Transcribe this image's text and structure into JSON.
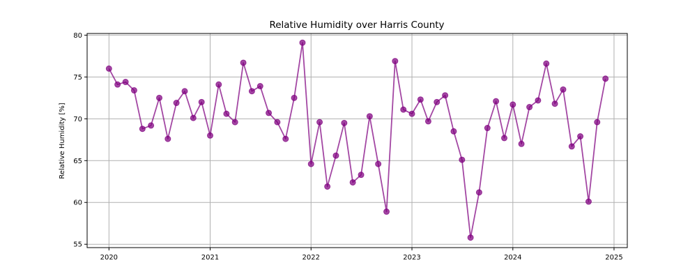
{
  "chart_data": {
    "type": "line",
    "title": "Relative Humidity over Harris County",
    "xlabel": "",
    "ylabel": "Relative Humidity [%]",
    "x_axis": {
      "type": "date",
      "range": [
        "2019-10-14",
        "2025-02-18"
      ],
      "ticks": [
        "2020-01-01",
        "2021-01-01",
        "2022-01-01",
        "2023-01-01",
        "2024-01-01",
        "2025-01-01"
      ],
      "tick_labels": [
        "2020",
        "2021",
        "2022",
        "2023",
        "2024",
        "2025"
      ]
    },
    "y_axis": {
      "range": [
        54.6,
        80.2
      ],
      "ticks": [
        55,
        60,
        65,
        70,
        75,
        80
      ],
      "tick_labels": [
        "55",
        "60",
        "65",
        "70",
        "75",
        "80"
      ]
    },
    "grid": true,
    "legend": "none",
    "series": [
      {
        "color": "#800080",
        "marker": "circle",
        "x": [
          "2020-01-01",
          "2020-02-01",
          "2020-03-01",
          "2020-04-01",
          "2020-05-01",
          "2020-06-01",
          "2020-07-01",
          "2020-08-01",
          "2020-09-01",
          "2020-10-01",
          "2020-11-01",
          "2020-12-01",
          "2021-01-01",
          "2021-02-01",
          "2021-03-01",
          "2021-04-01",
          "2021-05-01",
          "2021-06-01",
          "2021-07-01",
          "2021-08-01",
          "2021-09-01",
          "2021-10-01",
          "2021-11-01",
          "2021-12-01",
          "2022-01-01",
          "2022-02-01",
          "2022-03-01",
          "2022-04-01",
          "2022-05-01",
          "2022-06-01",
          "2022-07-01",
          "2022-08-01",
          "2022-09-01",
          "2022-10-01",
          "2022-11-01",
          "2022-12-01",
          "2023-01-01",
          "2023-02-01",
          "2023-03-01",
          "2023-04-01",
          "2023-05-01",
          "2023-06-01",
          "2023-07-01",
          "2023-08-01",
          "2023-09-01",
          "2023-10-01",
          "2023-11-01",
          "2023-12-01",
          "2024-01-01",
          "2024-02-01",
          "2024-03-01",
          "2024-04-01",
          "2024-05-01",
          "2024-06-01",
          "2024-07-01",
          "2024-08-01",
          "2024-09-01",
          "2024-10-01",
          "2024-11-01",
          "2024-12-01"
        ],
        "values": [
          76.0,
          74.1,
          74.4,
          73.4,
          68.8,
          69.2,
          72.5,
          67.6,
          71.9,
          73.3,
          70.1,
          72.0,
          68.0,
          74.1,
          70.6,
          69.6,
          76.7,
          73.3,
          73.9,
          70.7,
          69.6,
          67.6,
          72.5,
          79.1,
          64.6,
          69.6,
          61.9,
          65.6,
          69.5,
          62.4,
          63.3,
          70.3,
          64.6,
          58.9,
          76.9,
          71.1,
          70.6,
          72.3,
          69.7,
          72.0,
          72.8,
          68.5,
          65.1,
          55.8,
          61.2,
          68.9,
          72.1,
          67.7,
          71.7,
          67.0,
          71.4,
          72.2,
          76.6,
          71.8,
          73.5,
          66.7,
          67.9,
          60.1,
          69.6,
          74.8
        ]
      }
    ]
  }
}
